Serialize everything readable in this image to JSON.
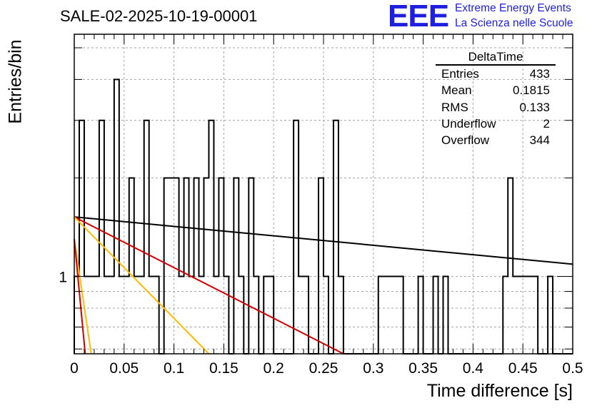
{
  "title": "SALE-02-2025-10-19-00001",
  "logo": {
    "text": "EEE",
    "line1": "Extreme Energy Events",
    "line2": "La Scienza nelle Scuole",
    "color": "#1f1fe0"
  },
  "stats": {
    "name": "DeltaTime",
    "rows": [
      {
        "label": "Entries",
        "value": "433"
      },
      {
        "label": "Mean",
        "value": "0.1815"
      },
      {
        "label": "RMS",
        "value": "0.133"
      },
      {
        "label": "Underflow",
        "value": "2"
      },
      {
        "label": "Overflow",
        "value": "344"
      }
    ]
  },
  "chart_data": {
    "type": "histogram",
    "title": "SALE-02-2025-10-19-00001",
    "xlabel": "Time difference [s]",
    "ylabel": "Entries/bin",
    "xlim": [
      0,
      0.5
    ],
    "ylim": [
      0.58,
      5.5
    ],
    "yscale": "log",
    "grid": true,
    "bin_width": 0.005,
    "x_ticks": [
      "0",
      "0.05",
      "0.1",
      "0.15",
      "0.2",
      "0.25",
      "0.3",
      "0.35",
      "0.4",
      "0.45",
      "0.5"
    ],
    "x_tick_values": [
      0,
      0.05,
      0.1,
      0.15,
      0.2,
      0.25,
      0.3,
      0.35,
      0.4,
      0.45,
      0.5
    ],
    "y_tick_labels": [
      "1"
    ],
    "y_tick_values": [
      1
    ],
    "counts": [
      1,
      3,
      1,
      1,
      1,
      3,
      1,
      1,
      4,
      1,
      1,
      2,
      1,
      1,
      3,
      1,
      1,
      0,
      2,
      2,
      2,
      1,
      2,
      1,
      2,
      1,
      2,
      3,
      1,
      2,
      1,
      0,
      2,
      1,
      0,
      2,
      1,
      0,
      1,
      1,
      0,
      0,
      0,
      0,
      3,
      1,
      1,
      0,
      0,
      2,
      1,
      0,
      3,
      1,
      0,
      0,
      0,
      0,
      0,
      0,
      0,
      1,
      1,
      1,
      1,
      1,
      0,
      0,
      0,
      1,
      0,
      0,
      1,
      0,
      1,
      0,
      0,
      0,
      0,
      0,
      0,
      0,
      0,
      0,
      0,
      0,
      1,
      2,
      1,
      1,
      1,
      1,
      1,
      0,
      0,
      1,
      0,
      0,
      0,
      0
    ],
    "fit_curves": [
      {
        "name": "total fit",
        "color": "#000000",
        "points": [
          [
            0,
            1.52
          ],
          [
            0.5,
            1.09
          ]
        ]
      },
      {
        "name": "component",
        "color": "#d40000",
        "points": [
          [
            0,
            1.52
          ],
          [
            0.27,
            0.58
          ]
        ]
      },
      {
        "name": "component",
        "color": "#ffbb00",
        "points": [
          [
            0,
            1.52
          ],
          [
            0.135,
            0.58
          ]
        ]
      },
      {
        "name": "component",
        "color": "#ffbb00",
        "points": [
          [
            0,
            1.3
          ],
          [
            0.017,
            0.58
          ]
        ]
      },
      {
        "name": "component",
        "color": "#d40000",
        "points": [
          [
            0,
            1.3
          ],
          [
            0.011,
            0.58
          ]
        ]
      }
    ]
  }
}
